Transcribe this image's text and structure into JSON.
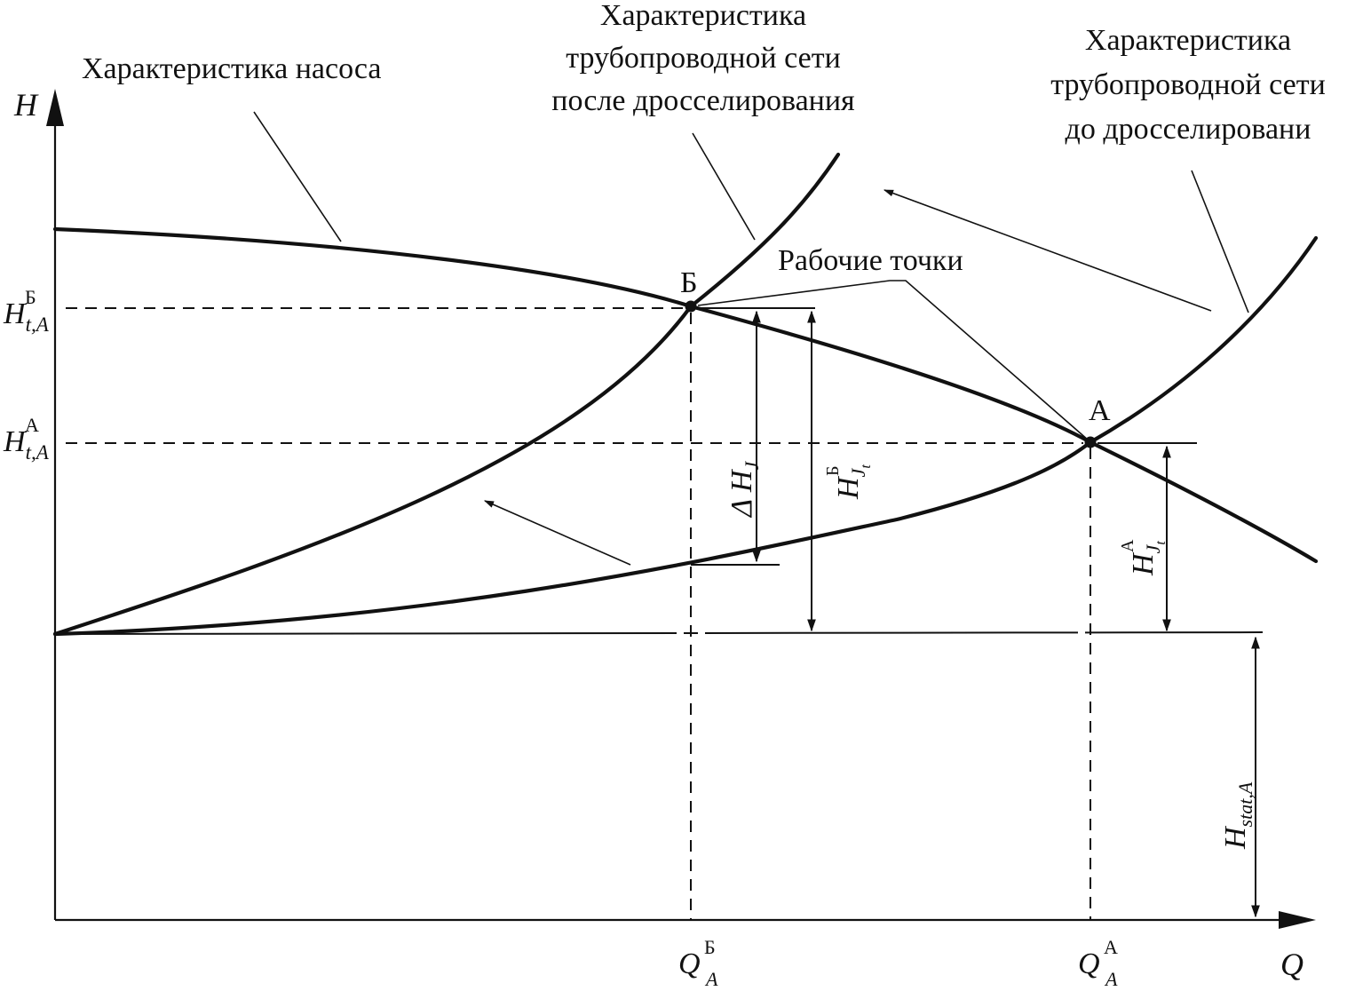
{
  "captions": {
    "pump": "Характеристика насоса",
    "after": [
      "Характеристика",
      "трубопроводной сети",
      "после дросселирования"
    ],
    "before": [
      "Характеристика",
      "трубопроводной сети",
      "до дросселировани"
    ],
    "working_points": "Рабочие точки"
  },
  "axes": {
    "y_label": "H",
    "x_label": "Q"
  },
  "points": {
    "A": "А",
    "B": "Б"
  },
  "y_ticks": {
    "b": {
      "main": "H",
      "sub": "t,A",
      "sup": "Б"
    },
    "a": {
      "main": "H",
      "sub": "t,A",
      "sup": "А"
    }
  },
  "x_ticks": {
    "b": {
      "main": "Q",
      "sub": "A",
      "sup": "Б"
    },
    "a": {
      "main": "Q",
      "sub": "A",
      "sup": "А"
    }
  },
  "dims": {
    "delta": {
      "prefix": "Δ H",
      "sub": "J"
    },
    "hjb": {
      "main": "H",
      "sub": "J",
      "subsub": "t",
      "sup": "Б"
    },
    "hja": {
      "main": "H",
      "sub": "J",
      "subsub": "t",
      "sup": "А"
    },
    "hstat": {
      "main": "H",
      "sub": "stat,A"
    }
  }
}
